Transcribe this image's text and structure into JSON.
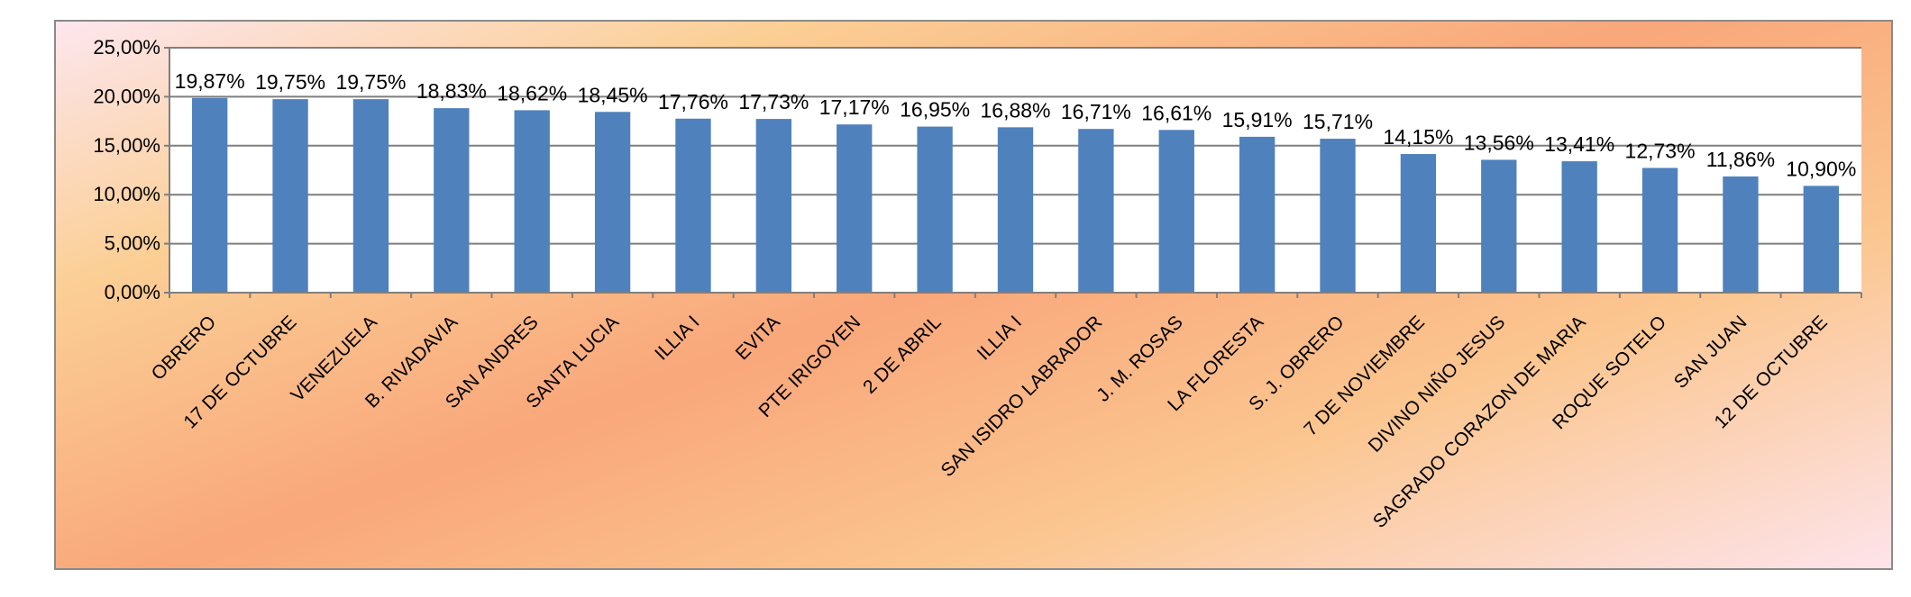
{
  "chart_data": {
    "type": "bar",
    "categories": [
      "OBRERO",
      "17 DE OCTUBRE",
      "VENEZUELA",
      "B. RIVADAVIA",
      "SAN ANDRES",
      "SANTA LUCIA",
      "ILLIA I",
      "EVITA",
      "PTE IRIGOYEN",
      "2 DE ABRIL",
      "ILLIA I",
      "SAN ISIDRO LABRADOR",
      "J. M. ROSAS",
      "LA FLORESTA",
      "S. J. OBRERO",
      "7 DE NOVIEMBRE",
      "DIVINO NIÑO JESUS",
      "SAGRADO CORAZON DE MARIA",
      "ROQUE SOTELO",
      "SAN JUAN",
      "12 DE OCTUBRE"
    ],
    "values": [
      19.87,
      19.75,
      19.75,
      18.83,
      18.62,
      18.45,
      17.76,
      17.73,
      17.17,
      16.95,
      16.88,
      16.71,
      16.61,
      15.91,
      15.71,
      14.15,
      13.56,
      13.41,
      12.73,
      11.86,
      10.9
    ],
    "data_labels": [
      "19,87%",
      "19,75%",
      "19,75%",
      "18,83%",
      "18,62%",
      "18,45%",
      "17,76%",
      "17,73%",
      "17,17%",
      "16,95%",
      "16,88%",
      "16,71%",
      "16,61%",
      "15,91%",
      "15,71%",
      "14,15%",
      "13,56%",
      "13,41%",
      "12,73%",
      "11,86%",
      "10,90%"
    ],
    "y_ticks": [
      0,
      5,
      10,
      15,
      20,
      25
    ],
    "y_tick_labels": [
      "0,00%",
      "5,00%",
      "10,00%",
      "15,00%",
      "20,00%",
      "25,00%"
    ],
    "ylim": [
      0,
      25
    ],
    "title": "",
    "xlabel": "",
    "ylabel": "",
    "grid": true,
    "legend": "none",
    "bar_color": "#4f81bd",
    "gridline_color": "#7f7f7f"
  }
}
